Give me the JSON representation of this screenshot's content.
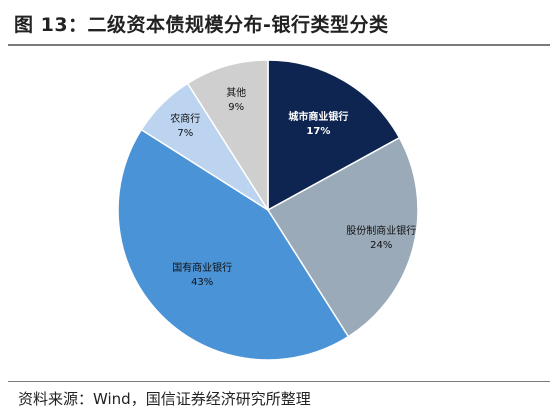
{
  "header": {
    "title": "图 13：二级资本债规模分布-银行类型分类"
  },
  "footer": {
    "source": "资料来源：Wind，国信证券经济研究所整理"
  },
  "chart_data": {
    "type": "pie",
    "start_angle_deg": 0,
    "direction": "clockwise",
    "slices": [
      {
        "label": "城市商业银行",
        "value": 17,
        "value_label": "17%",
        "color": "#0d2550",
        "label_color": "#ffffff"
      },
      {
        "label": "股份制商业银行",
        "value": 24,
        "value_label": "24%",
        "color": "#9aaab9",
        "label_color": "#111111"
      },
      {
        "label": "国有商业银行",
        "value": 43,
        "value_label": "43%",
        "color": "#4a93d6",
        "label_color": "#111111"
      },
      {
        "label": "农商行",
        "value": 7,
        "value_label": "7%",
        "color": "#bcd4ef",
        "label_color": "#111111"
      },
      {
        "label": "其他",
        "value": 9,
        "value_label": "9%",
        "color": "#cfcfcf",
        "label_color": "#111111"
      }
    ]
  }
}
